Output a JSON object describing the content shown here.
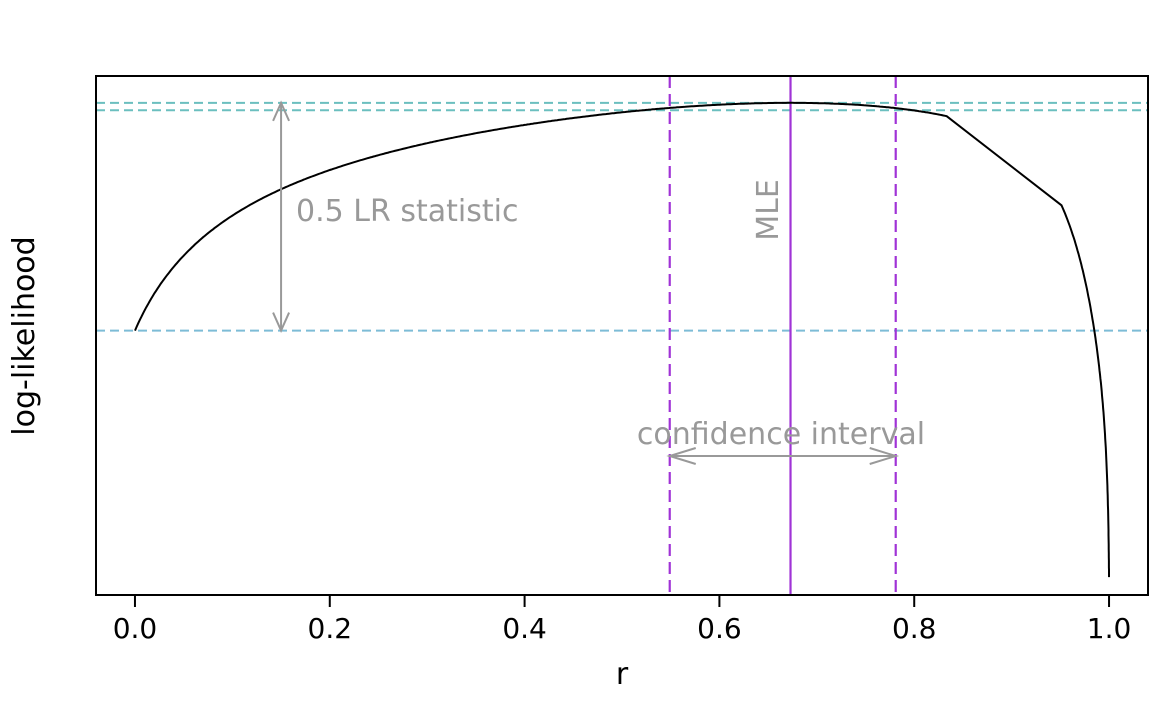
{
  "chart_data": {
    "type": "line",
    "title": "",
    "xlabel": "r",
    "ylabel": "log-likelihood",
    "xlim": [
      -0.04,
      1.04
    ],
    "ylim": [
      -55,
      3
    ],
    "x_ticks": [
      "0.0",
      "0.2",
      "0.4",
      "0.6",
      "0.8",
      "1.0"
    ],
    "y_ticks_shown": false,
    "grid": false,
    "series": [
      {
        "x": [
          0.0,
          0.05,
          0.1,
          0.15,
          0.2,
          0.25,
          0.3,
          0.35,
          0.4,
          0.45,
          0.5,
          0.55,
          0.6,
          0.65,
          0.673,
          0.7,
          0.75,
          0.8,
          0.85,
          0.88,
          0.9,
          0.92,
          0.94,
          0.95,
          0.96,
          0.97,
          0.98,
          0.99,
          0.995,
          1.0
        ],
        "y": [
          -25.45,
          -20.35,
          -16.04,
          -12.4,
          -9.35,
          -6.8,
          -4.7,
          -3.02,
          -1.73,
          -0.82,
          -0.27,
          -0.83,
          -0.26,
          -0.03,
          0.0,
          -0.07,
          -0.43,
          -1.22,
          -2.73,
          -4.14,
          -5.41,
          -7.1,
          -9.67,
          -11.38,
          -13.56,
          -16.51,
          -20.79,
          -28.31,
          -35.23,
          -53.0
        ]
      }
    ],
    "reference_lines": {
      "mle_r": 0.673,
      "ci_lower": 0.549,
      "ci_upper": 0.781,
      "max_loglik": 0.0,
      "ci_loglik": -0.83,
      "null_loglik": -25.45,
      "lr_arrow_r": 0.15
    },
    "annotations": {
      "lr_label": "0.5 LR statistic",
      "mle_label": "MLE",
      "ci_label": "confidence interval"
    },
    "colors": {
      "curve": "#000000",
      "mle_line": "#a033d6",
      "ci_lines": "#a033d6",
      "loglik_hlines": "#6bbfbf",
      "null_hline": "#7dbcd6",
      "annotation": "#999999"
    }
  }
}
